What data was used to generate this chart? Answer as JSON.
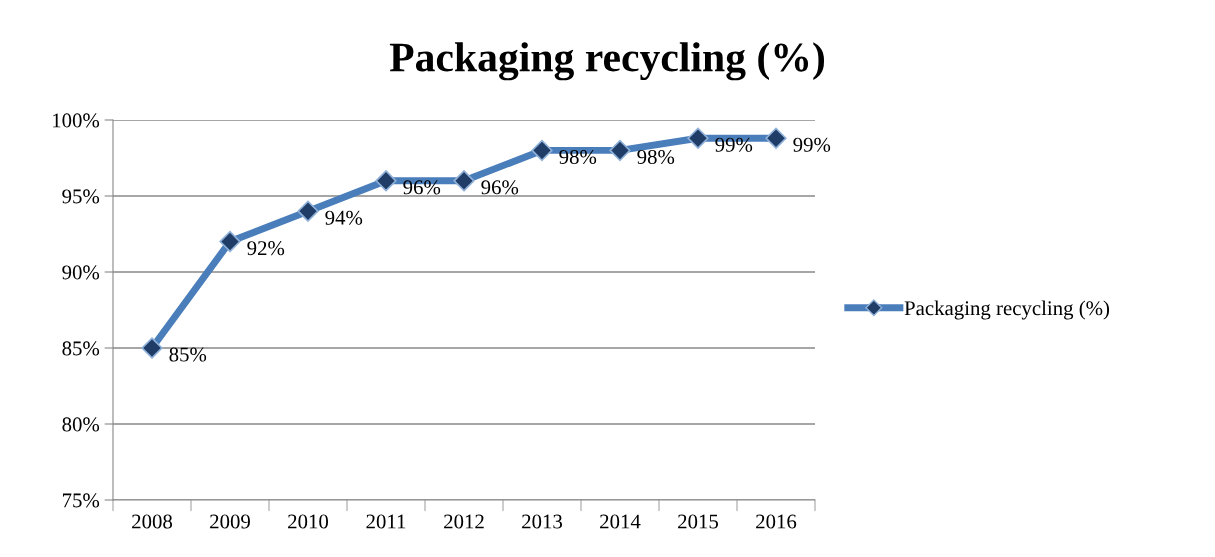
{
  "chart_data": {
    "type": "line",
    "title": "Packaging recycling (%)",
    "categories": [
      "2008",
      "2009",
      "2010",
      "2011",
      "2012",
      "2013",
      "2014",
      "2015",
      "2016"
    ],
    "series": [
      {
        "name": "Packaging recycling (%)",
        "color": "#4a7ebb",
        "values": [
          85,
          92,
          94,
          96,
          96,
          98,
          98,
          98.8,
          98.8
        ],
        "value_labels": [
          "85%",
          "92%",
          "94%",
          "96%",
          "96%",
          "98%",
          "98%",
          "99%",
          "99%"
        ]
      }
    ],
    "ylim": [
      75,
      100
    ],
    "yticks": [
      {
        "value": 75,
        "label": "75%"
      },
      {
        "value": 80,
        "label": "80%"
      },
      {
        "value": 85,
        "label": "85%"
      },
      {
        "value": 90,
        "label": "90%"
      },
      {
        "value": 95,
        "label": "95%"
      },
      {
        "value": 100,
        "label": "100%"
      }
    ],
    "grid": "y",
    "legend": "right",
    "marker": "diamond",
    "line_style": "solid"
  }
}
